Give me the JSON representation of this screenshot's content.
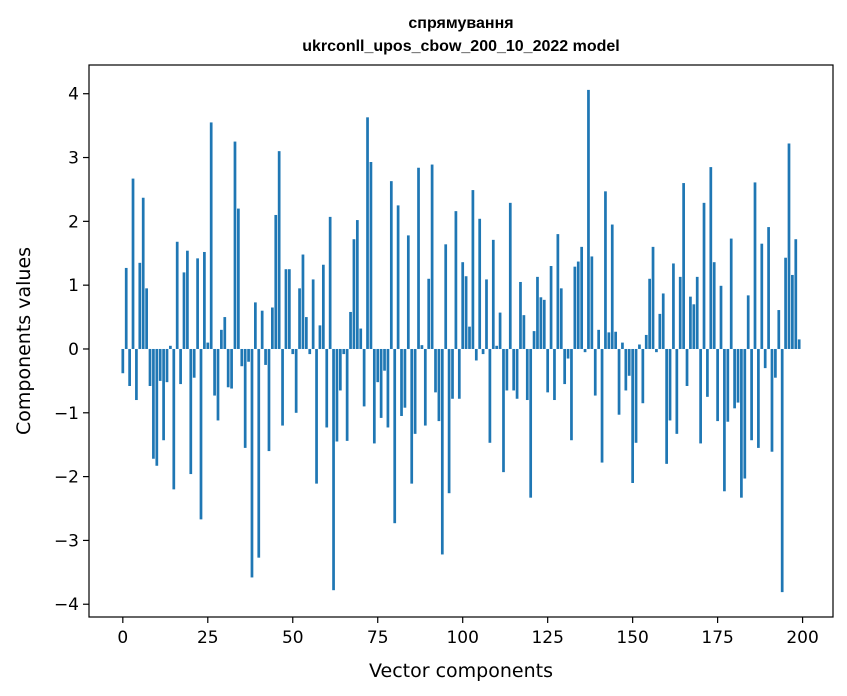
{
  "chart_data": {
    "type": "bar",
    "title": "спрямування",
    "subtitle": "ukrconll_upos_cbow_200_10_2022 model",
    "xlabel": "Vector components",
    "ylabel": "Components values",
    "xlim": [
      -9.95,
      208.95
    ],
    "ylim": [
      -4.2,
      4.45
    ],
    "xticks": [
      0,
      25,
      50,
      75,
      100,
      125,
      150,
      175,
      200
    ],
    "xtick_labels": [
      "0",
      "25",
      "50",
      "75",
      "100",
      "125",
      "150",
      "175",
      "200"
    ],
    "yticks": [
      -4,
      -3,
      -2,
      -1,
      0,
      1,
      2,
      3,
      4
    ],
    "ytick_labels": [
      "−4",
      "−3",
      "−2",
      "−1",
      "0",
      "1",
      "2",
      "3",
      "4"
    ],
    "bar_color": "#1f77b4",
    "grid": false,
    "legend": false,
    "values": [
      -0.38,
      1.27,
      -0.58,
      2.67,
      -0.8,
      1.35,
      2.37,
      0.95,
      -0.58,
      -1.72,
      -1.83,
      -0.5,
      -1.43,
      -0.52,
      0.05,
      -2.2,
      1.68,
      -0.55,
      1.2,
      1.54,
      -1.96,
      -0.45,
      1.42,
      -2.67,
      1.52,
      0.1,
      3.55,
      -0.73,
      -1.12,
      0.3,
      0.5,
      -0.6,
      -0.62,
      3.25,
      2.2,
      -0.27,
      -1.55,
      -0.2,
      -3.58,
      0.73,
      -3.27,
      0.6,
      -0.25,
      -1.6,
      0.65,
      2.1,
      3.1,
      -1.2,
      1.25,
      1.25,
      -0.08,
      -1.0,
      0.95,
      1.48,
      0.5,
      -0.08,
      1.09,
      -2.11,
      0.37,
      1.32,
      -1.23,
      2.07,
      -3.78,
      -1.45,
      -0.65,
      -0.08,
      -1.44,
      0.58,
      1.72,
      2.02,
      0.32,
      -0.9,
      3.63,
      2.93,
      -1.48,
      -0.52,
      -1.08,
      -0.34,
      -1.23,
      2.63,
      -2.73,
      2.25,
      -1.05,
      -0.92,
      1.78,
      -2.11,
      -1.33,
      2.84,
      0.06,
      -1.2,
      1.1,
      2.89,
      -0.68,
      -1.13,
      -3.22,
      1.64,
      -2.26,
      -0.78,
      2.16,
      -0.78,
      1.36,
      1.14,
      0.35,
      2.49,
      -0.18,
      2.04,
      -0.08,
      1.09,
      -1.47,
      1.71,
      0.05,
      0.57,
      -1.93,
      -0.65,
      2.29,
      -0.65,
      -0.78,
      1.05,
      0.53,
      -0.8,
      -2.33,
      0.28,
      1.13,
      0.81,
      0.77,
      -0.68,
      1.3,
      -0.8,
      1.8,
      0.95,
      -0.55,
      -0.15,
      -1.43,
      1.29,
      1.37,
      1.6,
      -0.05,
      4.06,
      1.45,
      -0.73,
      0.3,
      -1.78,
      2.47,
      0.26,
      1.95,
      0.27,
      -1.03,
      0.1,
      -0.65,
      -0.42,
      -2.1,
      -1.47,
      0.07,
      -0.85,
      0.22,
      1.1,
      1.6,
      -0.05,
      0.55,
      0.87,
      -1.8,
      -1.12,
      1.34,
      -1.33,
      1.13,
      2.6,
      -0.58,
      0.82,
      0.7,
      1.13,
      -1.48,
      2.29,
      -0.75,
      2.85,
      1.36,
      -1.13,
      0.99,
      -2.23,
      -1.14,
      1.73,
      -0.93,
      -0.84,
      -2.33,
      -2.03,
      0.84,
      -1.43,
      2.61,
      -1.55,
      1.65,
      -0.3,
      1.91,
      -1.61,
      -0.45,
      0.61,
      -3.81,
      1.43,
      3.22,
      1.16,
      1.72,
      0.15
    ]
  }
}
